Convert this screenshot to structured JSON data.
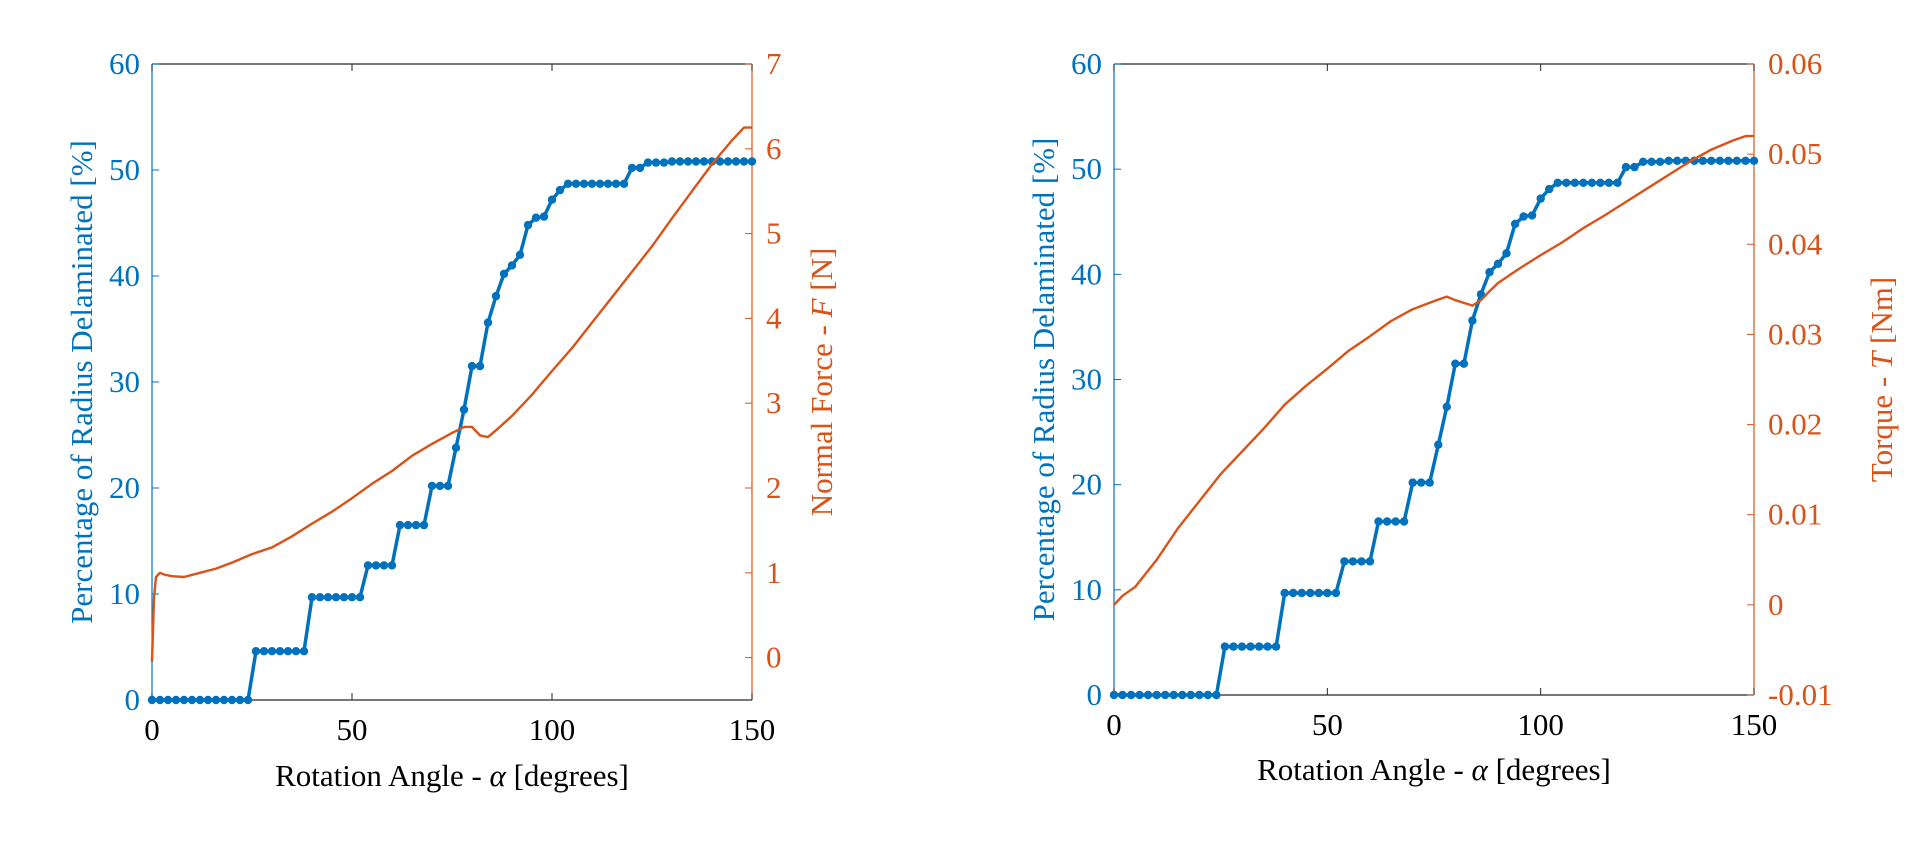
{
  "colors": {
    "blue": "#0072BD",
    "orange": "#D95319",
    "axis": "#262626",
    "text": "#000000"
  },
  "chart_data": [
    {
      "type": "line",
      "xlabel": "Rotation Angle - α [degrees]",
      "ylabel_left": "Percentage of Radius Delaminated [%]",
      "ylabel_right": "Normal Force - F [N]",
      "xlim": [
        0,
        150
      ],
      "ylim_left": [
        0,
        60
      ],
      "ylim_right": [
        -0.5,
        7
      ],
      "x_ticks": [
        0,
        50,
        100,
        150
      ],
      "y_ticks_left": [
        0,
        10,
        20,
        30,
        40,
        50,
        60
      ],
      "y_ticks_right": [
        0,
        1,
        2,
        3,
        4,
        5,
        6,
        7
      ],
      "grid": false,
      "series": [
        {
          "axis": "left",
          "marker": "dot",
          "color": "#0072BD",
          "x": [
            0,
            2,
            4,
            6,
            8,
            10,
            12,
            14,
            16,
            18,
            20,
            22,
            24,
            26,
            28,
            30,
            32,
            34,
            36,
            38,
            40,
            42,
            44,
            46,
            48,
            50,
            52,
            54,
            56,
            58,
            60,
            62,
            64,
            66,
            68,
            70,
            72,
            74,
            76,
            78,
            80,
            82,
            84,
            86,
            88,
            90,
            92,
            94,
            96,
            98,
            100,
            102,
            104,
            106,
            108,
            110,
            112,
            114,
            116,
            118,
            120,
            122,
            124,
            126,
            128,
            130,
            132,
            134,
            136,
            138,
            140,
            142,
            144,
            146,
            148,
            150
          ],
          "y": [
            0,
            0,
            0,
            0,
            0,
            0,
            0,
            0,
            0,
            0,
            0,
            0,
            0,
            4.6,
            4.6,
            4.6,
            4.6,
            4.6,
            4.6,
            4.6,
            9.7,
            9.7,
            9.7,
            9.7,
            9.7,
            9.7,
            9.7,
            12.7,
            12.7,
            12.7,
            12.7,
            16.5,
            16.5,
            16.5,
            16.5,
            20.2,
            20.2,
            20.2,
            23.8,
            27.4,
            31.5,
            31.5,
            35.6,
            38.1,
            40.2,
            41.0,
            42.0,
            44.8,
            45.5,
            45.6,
            47.2,
            48.1,
            48.7,
            48.7,
            48.7,
            48.7,
            48.7,
            48.7,
            48.7,
            48.7,
            50.2,
            50.2,
            50.7,
            50.7,
            50.7,
            50.8,
            50.8,
            50.8,
            50.8,
            50.8,
            50.8,
            50.8,
            50.8,
            50.8,
            50.8,
            50.8
          ]
        },
        {
          "axis": "right",
          "marker": "none",
          "color": "#D95319",
          "x": [
            0,
            0.5,
            1,
            2,
            3,
            5,
            8,
            12,
            16,
            20,
            25,
            30,
            35,
            40,
            45,
            50,
            55,
            60,
            65,
            70,
            75,
            78,
            80,
            82,
            84,
            86,
            90,
            95,
            100,
            105,
            110,
            115,
            120,
            125,
            130,
            135,
            140,
            145,
            148,
            150
          ],
          "y": [
            -0.05,
            0.7,
            0.95,
            1.0,
            0.98,
            0.96,
            0.95,
            1.0,
            1.05,
            1.12,
            1.22,
            1.3,
            1.43,
            1.58,
            1.72,
            1.88,
            2.05,
            2.2,
            2.38,
            2.52,
            2.65,
            2.72,
            2.72,
            2.62,
            2.6,
            2.68,
            2.85,
            3.1,
            3.38,
            3.65,
            3.95,
            4.25,
            4.55,
            4.85,
            5.18,
            5.5,
            5.82,
            6.1,
            6.25,
            6.25
          ]
        }
      ]
    },
    {
      "type": "line",
      "xlabel": "Rotation Angle - α [degrees]",
      "ylabel_left": "Percentage of Radius Delaminated [%]",
      "ylabel_right": "Torque - T [Nm]",
      "xlim": [
        0,
        150
      ],
      "ylim_left": [
        0,
        60
      ],
      "ylim_right": [
        -0.01,
        0.06
      ],
      "x_ticks": [
        0,
        50,
        100,
        150
      ],
      "y_ticks_left": [
        0,
        10,
        20,
        30,
        40,
        50,
        60
      ],
      "y_ticks_right": [
        -0.01,
        0,
        0.01,
        0.02,
        0.03,
        0.04,
        0.05,
        0.06
      ],
      "grid": false,
      "series": [
        {
          "axis": "left",
          "marker": "dot",
          "color": "#0072BD",
          "x": [
            0,
            2,
            4,
            6,
            8,
            10,
            12,
            14,
            16,
            18,
            20,
            22,
            24,
            26,
            28,
            30,
            32,
            34,
            36,
            38,
            40,
            42,
            44,
            46,
            48,
            50,
            52,
            54,
            56,
            58,
            60,
            62,
            64,
            66,
            68,
            70,
            72,
            74,
            76,
            78,
            80,
            82,
            84,
            86,
            88,
            90,
            92,
            94,
            96,
            98,
            100,
            102,
            104,
            106,
            108,
            110,
            112,
            114,
            116,
            118,
            120,
            122,
            124,
            126,
            128,
            130,
            132,
            134,
            136,
            138,
            140,
            142,
            144,
            146,
            148,
            150
          ],
          "y": [
            0,
            0,
            0,
            0,
            0,
            0,
            0,
            0,
            0,
            0,
            0,
            0,
            0,
            4.6,
            4.6,
            4.6,
            4.6,
            4.6,
            4.6,
            4.6,
            9.7,
            9.7,
            9.7,
            9.7,
            9.7,
            9.7,
            9.7,
            12.7,
            12.7,
            12.7,
            12.7,
            16.5,
            16.5,
            16.5,
            16.5,
            20.2,
            20.2,
            20.2,
            23.8,
            27.4,
            31.5,
            31.5,
            35.6,
            38.1,
            40.2,
            41.0,
            42.0,
            44.8,
            45.5,
            45.6,
            47.2,
            48.1,
            48.7,
            48.7,
            48.7,
            48.7,
            48.7,
            48.7,
            48.7,
            48.7,
            50.2,
            50.2,
            50.7,
            50.7,
            50.7,
            50.8,
            50.8,
            50.8,
            50.8,
            50.8,
            50.8,
            50.8,
            50.8,
            50.8,
            50.8,
            50.8
          ]
        },
        {
          "axis": "right",
          "marker": "none",
          "color": "#D95319",
          "x": [
            0,
            2,
            5,
            10,
            15,
            20,
            25,
            30,
            35,
            40,
            45,
            50,
            55,
            60,
            65,
            70,
            75,
            78,
            80,
            82,
            84,
            86,
            88,
            90,
            95,
            100,
            105,
            110,
            115,
            120,
            125,
            130,
            135,
            140,
            145,
            148,
            150
          ],
          "y": [
            0.0,
            0.001,
            0.002,
            0.005,
            0.0085,
            0.0115,
            0.0145,
            0.017,
            0.0195,
            0.0222,
            0.0243,
            0.0262,
            0.0282,
            0.0298,
            0.0315,
            0.0328,
            0.0337,
            0.0342,
            0.0338,
            0.0335,
            0.0332,
            0.0338,
            0.0348,
            0.0357,
            0.0373,
            0.0388,
            0.0402,
            0.0418,
            0.0432,
            0.0447,
            0.0462,
            0.0477,
            0.0492,
            0.0505,
            0.0515,
            0.052,
            0.052
          ]
        }
      ]
    }
  ]
}
